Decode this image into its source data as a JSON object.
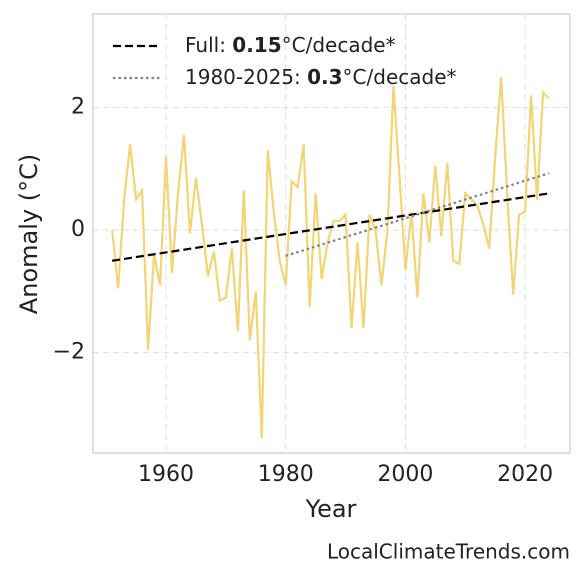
{
  "chart_data": {
    "type": "line",
    "xlabel": "Year",
    "ylabel": "Anomaly (°C)",
    "source": "LocalClimateTrends.com",
    "xlim": [
      1947.8,
      2027.5
    ],
    "xticks": [
      1960,
      1980,
      2000,
      2020
    ],
    "ylim": [
      -3.64,
      3.53
    ],
    "yticks": [
      {
        "value": -2,
        "label": "−2"
      },
      0,
      2
    ],
    "grid": true,
    "legend": "upper left",
    "x": [
      1951,
      1952,
      1953,
      1954,
      1955,
      1956,
      1957,
      1958,
      1959,
      1960,
      1961,
      1962,
      1963,
      1964,
      1965,
      1966,
      1967,
      1968,
      1969,
      1970,
      1971,
      1972,
      1973,
      1974,
      1975,
      1976,
      1977,
      1978,
      1979,
      1980,
      1981,
      1982,
      1983,
      1984,
      1985,
      1986,
      1987,
      1988,
      1989,
      1990,
      1991,
      1992,
      1993,
      1994,
      1995,
      1996,
      1997,
      1998,
      1999,
      2000,
      2001,
      2002,
      2003,
      2004,
      2005,
      2006,
      2007,
      2008,
      2009,
      2010,
      2011,
      2012,
      2013,
      2014,
      2015,
      2016,
      2017,
      2018,
      2019,
      2020,
      2021,
      2022,
      2023,
      2024
    ],
    "series": [
      {
        "color": "#f2d574",
        "style": "solid",
        "values": [
          0.0,
          -0.95,
          0.5,
          1.4,
          0.5,
          0.65,
          -1.95,
          -0.4,
          -0.9,
          1.2,
          -0.7,
          0.6,
          1.55,
          -0.05,
          0.85,
          0.1,
          -0.75,
          -0.35,
          -1.15,
          -1.1,
          -0.3,
          -1.65,
          0.65,
          -1.8,
          -1.0,
          -3.4,
          1.3,
          0.3,
          -0.5,
          -0.9,
          0.8,
          0.7,
          1.4,
          -1.25,
          0.6,
          -0.8,
          -0.2,
          0.15,
          0.15,
          0.25,
          -1.6,
          -0.2,
          -1.6,
          0.25,
          0.0,
          -0.9,
          0.0,
          2.35,
          0.9,
          -0.65,
          0.3,
          -1.1,
          0.6,
          -0.2,
          1.05,
          -0.1,
          1.1,
          -0.5,
          -0.55,
          0.6,
          0.5,
          0.4,
          0.1,
          -0.3,
          1.2,
          2.5,
          0.6,
          -1.05,
          0.25,
          0.3,
          2.2,
          0.5,
          2.25,
          2.15
        ]
      },
      {
        "name": "Full: 0.15°C/decade*",
        "color": "#000000",
        "style": "dashed",
        "x": [
          1951,
          2024
        ],
        "values": [
          -0.5,
          0.6
        ]
      },
      {
        "name": "1980-2025: 0.3°C/decade*",
        "color": "#808080",
        "style": "dotted",
        "x": [
          1980,
          2024
        ],
        "values": [
          -0.42,
          0.93
        ]
      }
    ]
  }
}
